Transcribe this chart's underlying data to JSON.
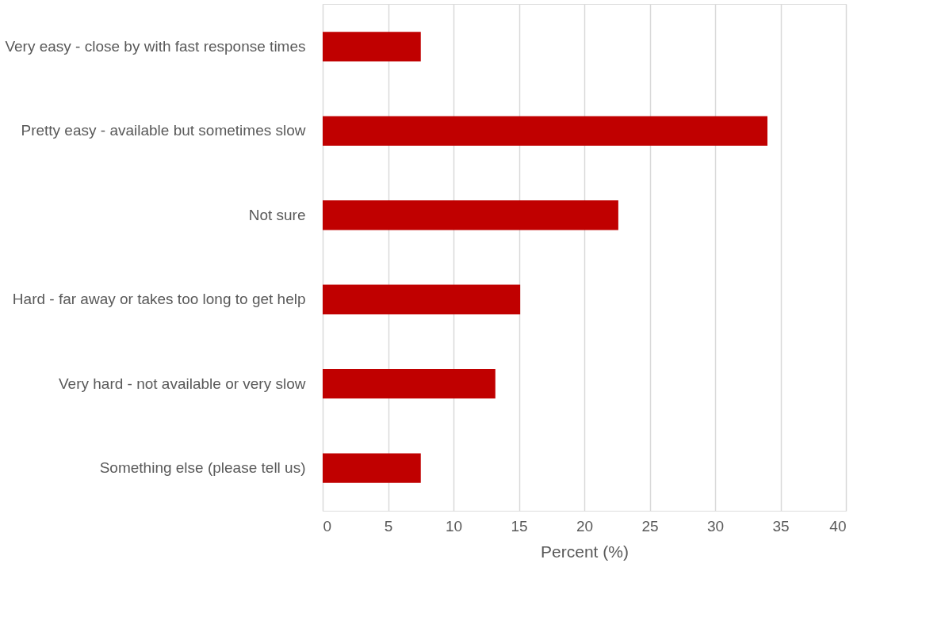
{
  "chart_data": {
    "type": "bar",
    "orientation": "horizontal",
    "xlabel": "Percent (%)",
    "categories": [
      "Very easy - close by with fast response times",
      "Pretty easy - available but sometimes slow",
      "Not sure",
      "Hard - far away or takes too long to get help",
      "Very hard - not available or very slow",
      "Something else (please tell us)"
    ],
    "values": [
      7.5,
      34.0,
      22.6,
      15.1,
      13.2,
      7.5
    ],
    "color": "#c00000",
    "xlim": [
      0,
      40
    ],
    "xticks": [
      0,
      5,
      10,
      15,
      20,
      25,
      30,
      35,
      40
    ],
    "grid": "x"
  }
}
